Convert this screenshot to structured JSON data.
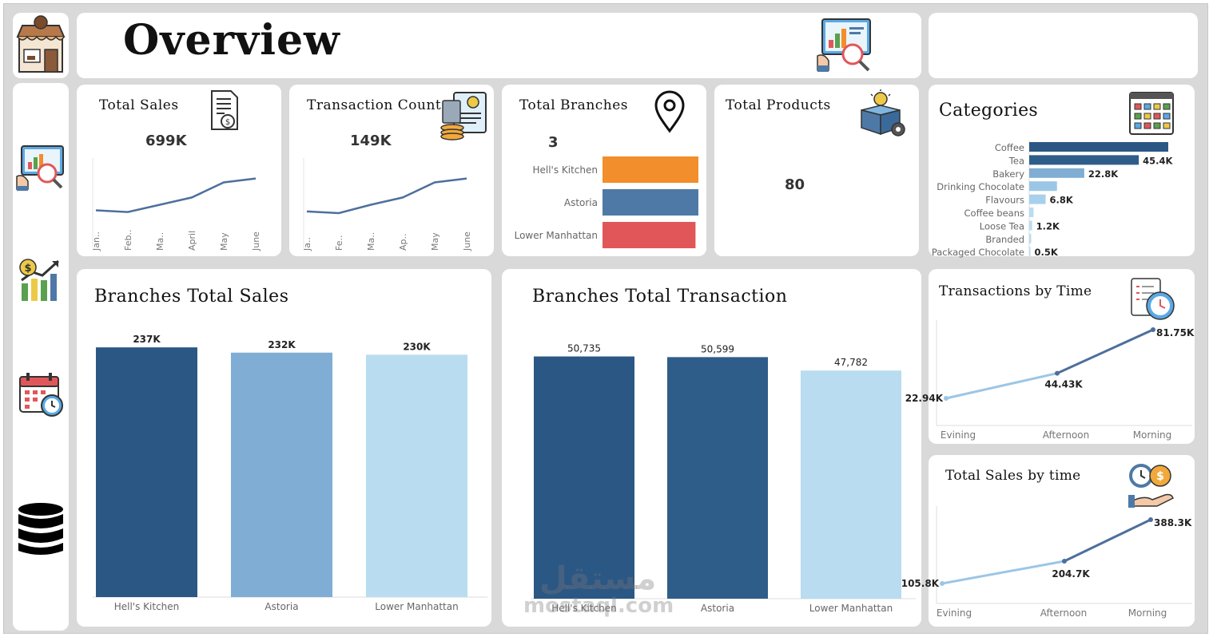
{
  "header": {
    "title": "Overview"
  },
  "nav": {
    "items": [
      "overview-icon",
      "sales-icon",
      "calendar-icon",
      "database-icon"
    ]
  },
  "kpis": {
    "total_sales": {
      "label": "Total Sales",
      "value": "699K",
      "months": [
        "Jan..",
        "Feb..",
        "Ma..",
        "April",
        "May",
        "June"
      ],
      "trend": [
        0.35,
        0.32,
        0.45,
        0.58,
        0.85,
        0.92
      ]
    },
    "transaction_count": {
      "label": "Transaction Count",
      "value": "149K",
      "months": [
        "Ja..",
        "Fe..",
        "Ma..",
        "Ap..",
        "May",
        "June"
      ],
      "trend": [
        0.33,
        0.3,
        0.45,
        0.58,
        0.85,
        0.92
      ]
    },
    "total_branches": {
      "label": "Total Branches",
      "value": "3",
      "branches": [
        "Hell's Kitchen",
        "Astoria",
        "Lower Manhattan"
      ],
      "bar_fraction": [
        1.0,
        1.0,
        0.97
      ]
    },
    "total_products": {
      "label": "Total Products",
      "value": "80"
    }
  },
  "categories": {
    "title": "Categories",
    "items": [
      {
        "name": "Coffee",
        "value": 57.6,
        "label": ""
      },
      {
        "name": "Tea",
        "value": 45.4,
        "label": "45.4K"
      },
      {
        "name": "Bakery",
        "value": 22.8,
        "label": "22.8K"
      },
      {
        "name": "Drinking Chocolate",
        "value": 11.5,
        "label": ""
      },
      {
        "name": "Flavours",
        "value": 6.8,
        "label": "6.8K"
      },
      {
        "name": "Coffee beans",
        "value": 1.8,
        "label": ""
      },
      {
        "name": "Loose Tea",
        "value": 1.2,
        "label": "1.2K"
      },
      {
        "name": "Branded",
        "value": 0.8,
        "label": ""
      },
      {
        "name": "Packaged Chocolate",
        "value": 0.5,
        "label": "0.5K"
      }
    ]
  },
  "branch_sales": {
    "title": "Branches Total Sales",
    "chart_data": {
      "type": "bar",
      "categories": [
        "Hell's Kitchen",
        "Astoria",
        "Lower Manhattan"
      ],
      "values": [
        237,
        232,
        230
      ],
      "labels": [
        "237K",
        "232K",
        "230K"
      ],
      "colors": [
        "#2b5784",
        "#7fadd3",
        "#b9dcf0"
      ],
      "ylim": [
        0,
        250
      ]
    }
  },
  "branch_transactions": {
    "title": "Branches Total Transaction",
    "chart_data": {
      "type": "bar",
      "categories": [
        "Hell's Kitchen",
        "Astoria",
        "Lower Manhattan"
      ],
      "values": [
        50735,
        50599,
        47782
      ],
      "labels": [
        "50,735",
        "50,599",
        "47,782"
      ],
      "colors": [
        "#2b5784",
        "#2f5d8a",
        "#b9dcf0"
      ],
      "ylim": [
        0,
        53000
      ]
    }
  },
  "transactions_by_time": {
    "title": "Transactions by Time",
    "chart_data": {
      "type": "line",
      "x": [
        "Evining",
        "Afternoon",
        "Morning"
      ],
      "values": [
        22.94,
        44.43,
        81.75
      ],
      "labels": [
        "22.94K",
        "44.43K",
        "81.75K"
      ],
      "ylim": [
        0,
        90
      ]
    }
  },
  "sales_by_time": {
    "title": "Total Sales by time",
    "chart_data": {
      "type": "line",
      "x": [
        "Evining",
        "Afternoon",
        "Morning"
      ],
      "values": [
        105.8,
        204.7,
        388.3
      ],
      "labels": [
        "105.8K",
        "204.7K",
        "388.3K"
      ],
      "ylim": [
        0,
        420
      ]
    }
  },
  "watermark": {
    "arabic": "مستقل",
    "latin": "mostaql.com"
  },
  "colors": {
    "dark_blue": "#2b5784",
    "mid_blue": "#4e79a7",
    "light_blue": "#b9dcf0",
    "orange": "#f28e2b",
    "red": "#e15759",
    "line_blue": "#4e6f9c"
  }
}
